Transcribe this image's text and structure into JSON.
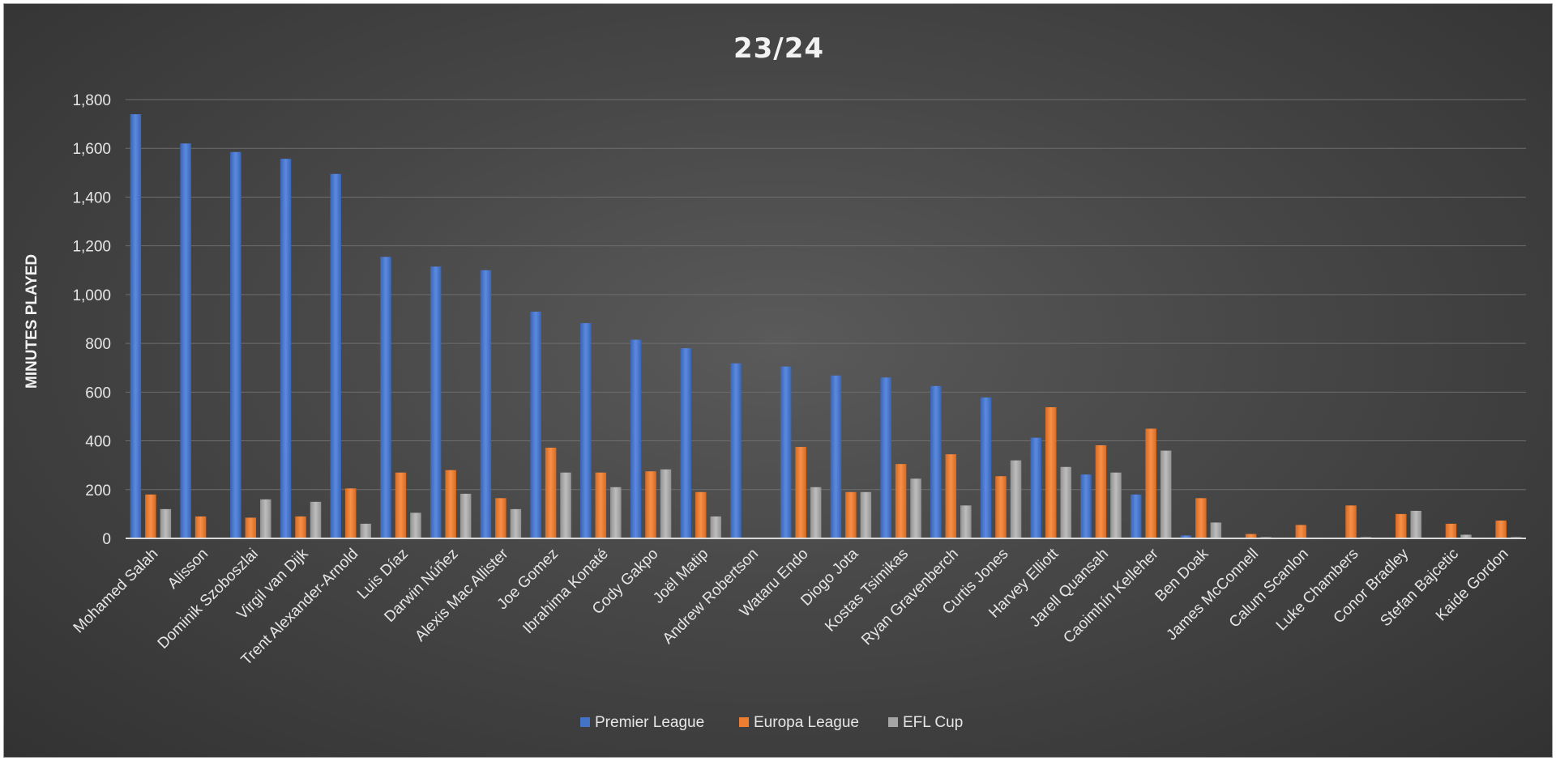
{
  "chart_data": {
    "type": "bar",
    "title": "23/24",
    "xlabel": "",
    "ylabel": "MINUTES PLAYED",
    "ylim": [
      0,
      1800
    ],
    "yticks": [
      0,
      200,
      400,
      600,
      800,
      1000,
      1200,
      1400,
      1600,
      1800
    ],
    "ytick_labels": [
      "0",
      "200",
      "400",
      "600",
      "800",
      "1,000",
      "1,200",
      "1,400",
      "1,600",
      "1,800"
    ],
    "grid": true,
    "legend_position": "bottom",
    "categories": [
      "Mohamed Salah",
      "Alisson",
      "Dominik Szoboszlai",
      "Virgil van Dijk",
      "Trent Alexander-Arnold",
      "Luis Díaz",
      "Darwin Núñez",
      "Alexis Mac Allister",
      "Joe Gomez",
      "Ibrahima Konaté",
      "Cody Gakpo",
      "Joël Matip",
      "Andrew Robertson",
      "Wataru Endo",
      "Diogo Jota",
      "Kostas Tsimikas",
      "Ryan Gravenberch",
      "Curtis Jones",
      "Harvey Elliott",
      "Jarell Quansah",
      "Caoimhín Kelleher",
      "Ben Doak",
      "James McConnell",
      "Calum Scanlon",
      "Luke Chambers",
      "Conor Bradley",
      "Stefan Bajcetic",
      "Kaide Gordon"
    ],
    "series": [
      {
        "name": "Premier League",
        "color": "#4472c4",
        "values": [
          1740,
          1620,
          1585,
          1557,
          1495,
          1155,
          1115,
          1100,
          930,
          883,
          815,
          780,
          718,
          705,
          668,
          660,
          625,
          578,
          413,
          262,
          180,
          12,
          0,
          0,
          0,
          0,
          0,
          0
        ]
      },
      {
        "name": "Europa League",
        "color": "#ed7d31",
        "values": [
          180,
          90,
          85,
          90,
          205,
          270,
          280,
          165,
          372,
          270,
          275,
          190,
          0,
          375,
          190,
          305,
          345,
          255,
          538,
          382,
          450,
          165,
          18,
          55,
          135,
          100,
          60,
          73
        ]
      },
      {
        "name": "EFL Cup",
        "color": "#a5a5a5",
        "values": [
          120,
          0,
          160,
          150,
          60,
          105,
          183,
          120,
          270,
          210,
          283,
          90,
          0,
          210,
          190,
          245,
          135,
          320,
          293,
          270,
          360,
          65,
          5,
          0,
          5,
          113,
          15,
          5
        ]
      }
    ]
  }
}
